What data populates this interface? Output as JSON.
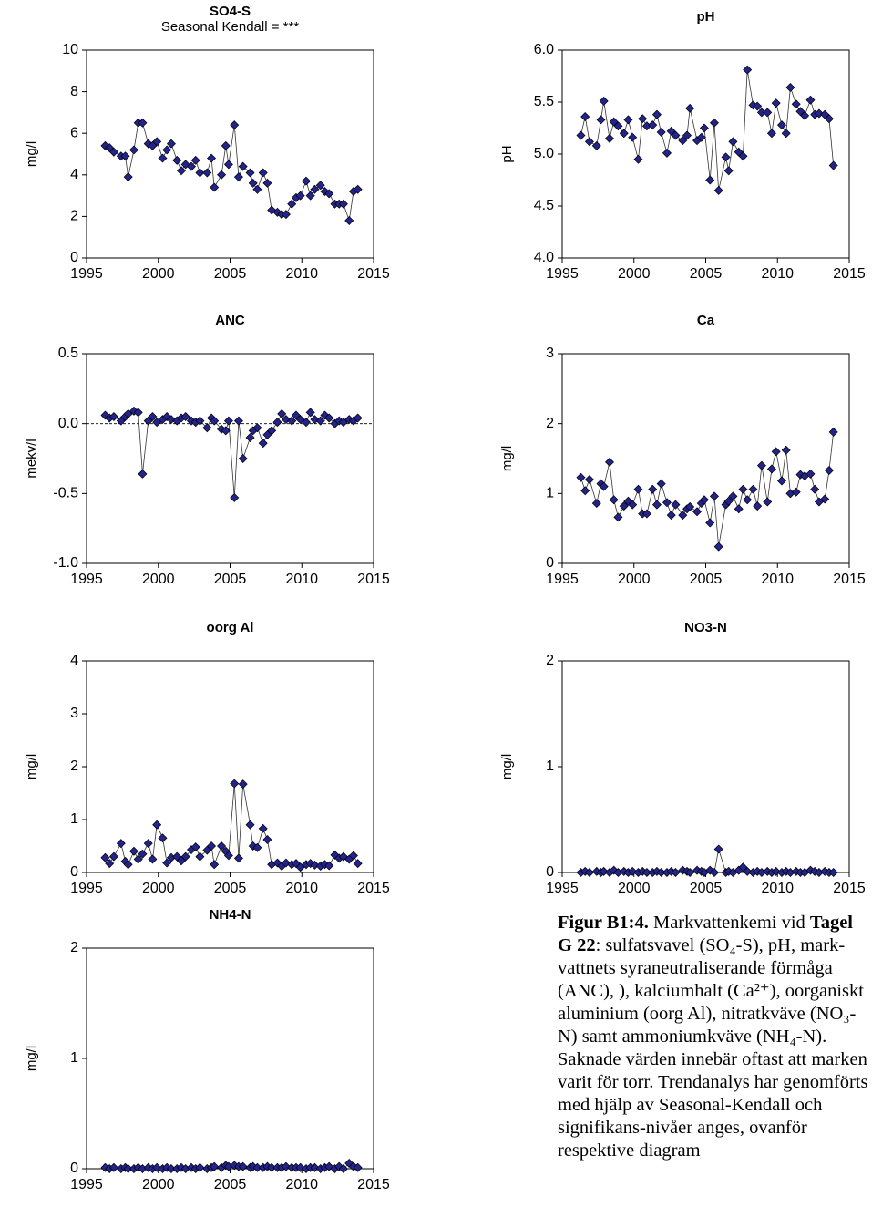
{
  "chart_data": [
    {
      "type": "line",
      "title": "SO4-S",
      "subtitle": "Seasonal Kendall = ***",
      "ylabel": "mg/l",
      "color": "#23238c",
      "x": [
        1996.3,
        1996.6,
        1996.9,
        1997.4,
        1997.7,
        1997.9,
        1998.3,
        1998.6,
        1998.9,
        1999.3,
        1999.6,
        1999.9,
        2000.3,
        2000.6,
        2000.9,
        2001.3,
        2001.6,
        2001.9,
        2002.3,
        2002.6,
        2002.9,
        2003.4,
        2003.7,
        2003.9,
        2004.4,
        2004.7,
        2004.9,
        2005.3,
        2005.6,
        2005.9,
        2006.4,
        2006.6,
        2006.9,
        2007.3,
        2007.6,
        2007.9,
        2008.3,
        2008.6,
        2008.9,
        2009.3,
        2009.6,
        2009.9,
        2010.3,
        2010.6,
        2010.9,
        2011.3,
        2011.6,
        2011.9,
        2012.3,
        2012.6,
        2012.9,
        2013.3,
        2013.6,
        2013.9
      ],
      "values": [
        5.4,
        5.3,
        5.1,
        4.9,
        4.9,
        3.9,
        5.2,
        6.5,
        6.5,
        5.5,
        5.4,
        5.6,
        4.8,
        5.2,
        5.5,
        4.7,
        4.2,
        4.5,
        4.4,
        4.7,
        4.1,
        4.1,
        4.8,
        3.4,
        4.0,
        5.4,
        4.5,
        6.4,
        3.9,
        4.4,
        4.1,
        3.6,
        3.3,
        4.1,
        3.6,
        2.3,
        2.2,
        2.1,
        2.1,
        2.6,
        2.9,
        3.0,
        3.7,
        3.0,
        3.3,
        3.5,
        3.2,
        3.1,
        2.6,
        2.6,
        2.6,
        1.8,
        3.2,
        3.3
      ],
      "xlim": [
        1995,
        2015
      ],
      "xticks": [
        1995,
        2000,
        2005,
        2010,
        2015
      ],
      "ylim": [
        0,
        10
      ],
      "yticks": [
        0,
        2,
        4,
        6,
        8,
        10
      ]
    },
    {
      "type": "line",
      "title": "pH",
      "ylabel": "pH",
      "color": "#23238c",
      "x": [
        1996.3,
        1996.6,
        1996.9,
        1997.4,
        1997.7,
        1997.9,
        1998.3,
        1998.6,
        1998.9,
        1999.3,
        1999.6,
        1999.9,
        2000.3,
        2000.6,
        2000.9,
        2001.3,
        2001.6,
        2001.9,
        2002.3,
        2002.6,
        2002.9,
        2003.4,
        2003.7,
        2003.9,
        2004.4,
        2004.7,
        2004.9,
        2005.3,
        2005.6,
        2005.9,
        2006.4,
        2006.6,
        2006.9,
        2007.3,
        2007.6,
        2007.9,
        2008.3,
        2008.6,
        2008.9,
        2009.3,
        2009.6,
        2009.9,
        2010.3,
        2010.6,
        2010.9,
        2011.3,
        2011.6,
        2011.9,
        2012.3,
        2012.6,
        2012.9,
        2013.3,
        2013.6,
        2013.9
      ],
      "values": [
        5.18,
        5.36,
        5.12,
        5.08,
        5.33,
        5.51,
        5.15,
        5.31,
        5.27,
        5.2,
        5.33,
        5.16,
        4.95,
        5.34,
        5.27,
        5.28,
        5.38,
        5.21,
        5.01,
        5.22,
        5.18,
        5.13,
        5.18,
        5.44,
        5.13,
        5.16,
        5.25,
        4.75,
        5.3,
        4.65,
        4.97,
        4.84,
        5.12,
        5.02,
        4.98,
        5.81,
        5.47,
        5.46,
        5.4,
        5.4,
        5.2,
        5.49,
        5.28,
        5.2,
        5.64,
        5.48,
        5.41,
        5.37,
        5.52,
        5.38,
        5.39,
        5.38,
        5.34,
        4.89
      ],
      "xlim": [
        1995,
        2015
      ],
      "xticks": [
        1995,
        2000,
        2005,
        2010,
        2015
      ],
      "ylim": [
        4,
        6
      ],
      "yticks": [
        {
          "value": 4,
          "label": "4.0"
        },
        {
          "value": 4.5,
          "label": "4.5"
        },
        {
          "value": 5,
          "label": "5.0"
        },
        {
          "value": 5.5,
          "label": "5.5"
        },
        {
          "value": 6,
          "label": "6.0"
        }
      ]
    },
    {
      "type": "line",
      "title": "ANC",
      "ylabel": "mekv/l",
      "color": "#23238c",
      "reference_line": 0,
      "x": [
        1996.3,
        1996.6,
        1996.9,
        1997.4,
        1997.7,
        1997.9,
        1998.3,
        1998.6,
        1998.9,
        1999.3,
        1999.6,
        1999.9,
        2000.3,
        2000.6,
        2000.9,
        2001.3,
        2001.6,
        2001.9,
        2002.3,
        2002.6,
        2002.9,
        2003.4,
        2003.7,
        2003.9,
        2004.4,
        2004.7,
        2004.9,
        2005.3,
        2005.6,
        2005.9,
        2006.4,
        2006.6,
        2006.9,
        2007.3,
        2007.6,
        2007.9,
        2008.3,
        2008.6,
        2008.9,
        2009.3,
        2009.6,
        2009.9,
        2010.3,
        2010.6,
        2010.9,
        2011.3,
        2011.6,
        2011.9,
        2012.3,
        2012.6,
        2012.9,
        2013.3,
        2013.6,
        2013.9
      ],
      "values": [
        0.06,
        0.04,
        0.05,
        0.02,
        0.05,
        0.07,
        0.09,
        0.08,
        -0.36,
        0.02,
        0.05,
        0.01,
        0.03,
        0.05,
        0.03,
        0.02,
        0.04,
        0.05,
        0.02,
        0.01,
        0.02,
        -0.03,
        0.04,
        0.02,
        -0.04,
        -0.05,
        0.02,
        -0.53,
        0.02,
        -0.25,
        -0.1,
        -0.05,
        -0.03,
        -0.14,
        -0.08,
        -0.05,
        0.01,
        0.07,
        0.03,
        0.02,
        0.06,
        0.03,
        0.01,
        0.08,
        0.03,
        0.02,
        0.06,
        0.04,
        0.0,
        0.02,
        0.01,
        0.03,
        0.02,
        0.04
      ],
      "xlim": [
        1995,
        2015
      ],
      "xticks": [
        1995,
        2000,
        2005,
        2010,
        2015
      ],
      "ylim": [
        -1,
        0.5
      ],
      "yticks": [
        {
          "value": -1,
          "label": "-1.0"
        },
        {
          "value": -0.5,
          "label": "-0.5"
        },
        {
          "value": 0,
          "label": "0.0"
        },
        {
          "value": 0.5,
          "label": "0.5"
        }
      ]
    },
    {
      "type": "line",
      "title": "Ca",
      "ylabel": "mg/l",
      "color": "#23238c",
      "x": [
        1996.3,
        1996.6,
        1996.9,
        1997.4,
        1997.7,
        1997.9,
        1998.3,
        1998.6,
        1998.9,
        1999.3,
        1999.6,
        1999.9,
        2000.3,
        2000.6,
        2000.9,
        2001.3,
        2001.6,
        2001.9,
        2002.3,
        2002.6,
        2002.9,
        2003.4,
        2003.7,
        2003.9,
        2004.4,
        2004.7,
        2004.9,
        2005.3,
        2005.6,
        2005.9,
        2006.4,
        2006.6,
        2006.9,
        2007.3,
        2007.6,
        2007.9,
        2008.3,
        2008.6,
        2008.9,
        2009.3,
        2009.6,
        2009.9,
        2010.3,
        2010.6,
        2010.9,
        2011.3,
        2011.6,
        2011.9,
        2012.3,
        2012.6,
        2012.9,
        2013.3,
        2013.6,
        2013.9
      ],
      "values": [
        1.23,
        1.04,
        1.2,
        0.86,
        1.14,
        1.1,
        1.45,
        0.91,
        0.66,
        0.82,
        0.89,
        0.84,
        1.06,
        0.71,
        0.71,
        1.06,
        0.84,
        1.14,
        0.87,
        0.69,
        0.84,
        0.69,
        0.78,
        0.81,
        0.74,
        0.86,
        0.91,
        0.58,
        0.96,
        0.24,
        0.84,
        0.89,
        0.96,
        0.78,
        1.06,
        0.91,
        1.06,
        0.82,
        1.4,
        0.88,
        1.35,
        1.6,
        1.18,
        1.62,
        1.0,
        1.02,
        1.27,
        1.25,
        1.28,
        1.06,
        0.88,
        0.92,
        1.33,
        1.88
      ],
      "xlim": [
        1995,
        2015
      ],
      "xticks": [
        1995,
        2000,
        2005,
        2010,
        2015
      ],
      "ylim": [
        0,
        3
      ],
      "yticks": [
        0,
        1,
        2,
        3
      ]
    },
    {
      "type": "line",
      "title": "oorg Al",
      "ylabel": "mg/l",
      "color": "#23238c",
      "x": [
        1996.3,
        1996.6,
        1996.9,
        1997.4,
        1997.7,
        1997.9,
        1998.3,
        1998.6,
        1998.9,
        1999.3,
        1999.6,
        1999.9,
        2000.3,
        2000.6,
        2000.9,
        2001.3,
        2001.6,
        2001.9,
        2002.3,
        2002.6,
        2002.9,
        2003.4,
        2003.7,
        2003.9,
        2004.4,
        2004.7,
        2004.9,
        2005.3,
        2005.6,
        2005.9,
        2006.4,
        2006.6,
        2006.9,
        2007.3,
        2007.6,
        2007.9,
        2008.3,
        2008.6,
        2008.9,
        2009.3,
        2009.6,
        2009.9,
        2010.3,
        2010.6,
        2010.9,
        2011.3,
        2011.6,
        2011.9,
        2012.3,
        2012.6,
        2012.9,
        2013.3,
        2013.6,
        2013.9
      ],
      "values": [
        0.28,
        0.17,
        0.3,
        0.55,
        0.21,
        0.15,
        0.4,
        0.25,
        0.35,
        0.55,
        0.25,
        0.9,
        0.65,
        0.18,
        0.28,
        0.3,
        0.22,
        0.3,
        0.43,
        0.48,
        0.3,
        0.42,
        0.5,
        0.15,
        0.5,
        0.4,
        0.32,
        1.68,
        0.27,
        1.67,
        0.9,
        0.5,
        0.47,
        0.83,
        0.62,
        0.15,
        0.18,
        0.12,
        0.18,
        0.15,
        0.17,
        0.1,
        0.15,
        0.17,
        0.14,
        0.12,
        0.15,
        0.13,
        0.33,
        0.27,
        0.3,
        0.25,
        0.32,
        0.17
      ],
      "xlim": [
        1995,
        2015
      ],
      "xticks": [
        1995,
        2000,
        2005,
        2010,
        2015
      ],
      "ylim": [
        0,
        4
      ],
      "yticks": [
        0,
        1,
        2,
        3,
        4
      ]
    },
    {
      "type": "line",
      "title": "NO3-N",
      "ylabel": "mg/l",
      "color": "#23238c",
      "x": [
        1996.3,
        1996.6,
        1996.9,
        1997.4,
        1997.7,
        1997.9,
        1998.3,
        1998.6,
        1998.9,
        1999.3,
        1999.6,
        1999.9,
        2000.3,
        2000.6,
        2000.9,
        2001.3,
        2001.6,
        2001.9,
        2002.3,
        2002.6,
        2002.9,
        2003.4,
        2003.7,
        2003.9,
        2004.4,
        2004.7,
        2004.9,
        2005.3,
        2005.6,
        2005.9,
        2006.4,
        2006.6,
        2006.9,
        2007.3,
        2007.6,
        2007.9,
        2008.3,
        2008.6,
        2008.9,
        2009.3,
        2009.6,
        2009.9,
        2010.3,
        2010.6,
        2010.9,
        2011.3,
        2011.6,
        2011.9,
        2012.3,
        2012.6,
        2012.9,
        2013.3,
        2013.6,
        2013.9
      ],
      "values": [
        0.0,
        0.01,
        0.0,
        0.01,
        0.0,
        0.01,
        0.0,
        0.02,
        0.0,
        0.01,
        0.0,
        0.01,
        0.0,
        0.01,
        0.0,
        0.0,
        0.01,
        0.0,
        0.0,
        0.01,
        0.0,
        0.02,
        0.01,
        0.0,
        0.02,
        0.01,
        0.0,
        0.02,
        0.0,
        0.22,
        0.0,
        0.01,
        0.0,
        0.02,
        0.05,
        0.01,
        0.0,
        0.01,
        0.0,
        0.01,
        0.0,
        0.01,
        0.0,
        0.01,
        0.0,
        0.01,
        0.0,
        0.0,
        0.02,
        0.01,
        0.0,
        0.01,
        0.0,
        0.0
      ],
      "xlim": [
        1995,
        2015
      ],
      "xticks": [
        1995,
        2000,
        2005,
        2010,
        2015
      ],
      "ylim": [
        0,
        2
      ],
      "yticks": [
        0,
        1,
        2
      ]
    },
    {
      "type": "line",
      "title": "NH4-N",
      "ylabel": "mg/l",
      "color": "#23238c",
      "x": [
        1996.3,
        1996.6,
        1996.9,
        1997.4,
        1997.7,
        1997.9,
        1998.3,
        1998.6,
        1998.9,
        1999.3,
        1999.6,
        1999.9,
        2000.3,
        2000.6,
        2000.9,
        2001.3,
        2001.6,
        2001.9,
        2002.3,
        2002.6,
        2002.9,
        2003.4,
        2003.7,
        2003.9,
        2004.4,
        2004.7,
        2004.9,
        2005.3,
        2005.6,
        2005.9,
        2006.4,
        2006.6,
        2006.9,
        2007.3,
        2007.6,
        2007.9,
        2008.3,
        2008.6,
        2008.9,
        2009.3,
        2009.6,
        2009.9,
        2010.3,
        2010.6,
        2010.9,
        2011.3,
        2011.6,
        2011.9,
        2012.3,
        2012.6,
        2012.9,
        2013.3,
        2013.6,
        2013.9
      ],
      "values": [
        0.01,
        0.0,
        0.01,
        0.0,
        0.01,
        0.0,
        0.0,
        0.01,
        0.0,
        0.01,
        0.0,
        0.01,
        0.0,
        0.01,
        0.0,
        0.0,
        0.01,
        0.0,
        0.01,
        0.0,
        0.01,
        0.0,
        0.01,
        0.02,
        0.01,
        0.03,
        0.02,
        0.03,
        0.02,
        0.02,
        0.01,
        0.02,
        0.01,
        0.01,
        0.02,
        0.01,
        0.01,
        0.01,
        0.02,
        0.01,
        0.01,
        0.01,
        0.0,
        0.01,
        0.01,
        0.0,
        0.01,
        0.02,
        0.0,
        0.02,
        0.0,
        0.05,
        0.02,
        0.01
      ],
      "xlim": [
        1995,
        2015
      ],
      "xticks": [
        1995,
        2000,
        2005,
        2010,
        2015
      ],
      "ylim": [
        0,
        2
      ],
      "yticks": [
        0,
        1,
        2
      ]
    }
  ],
  "caption": [
    "Figur B1:4.",
    " Markvattenkemi vid ",
    "Tagel G 22",
    ": sulfatsvavel (SO₄-S), pH, mark-vattnets syraneutraliserande förmåga (ANC), ), kalciumhalt (Ca²⁺), oorganiskt aluminium (oorg Al), nitratkväve (NO₃-N) samt ammoniumkväve (NH₄-N). Saknade värden innebär oftast att marken varit för torr. Trendanalys har genomförts med hjälp av Seasonal-Kendall och signifikans-nivåer anges, ovanför respektive diagram"
  ]
}
